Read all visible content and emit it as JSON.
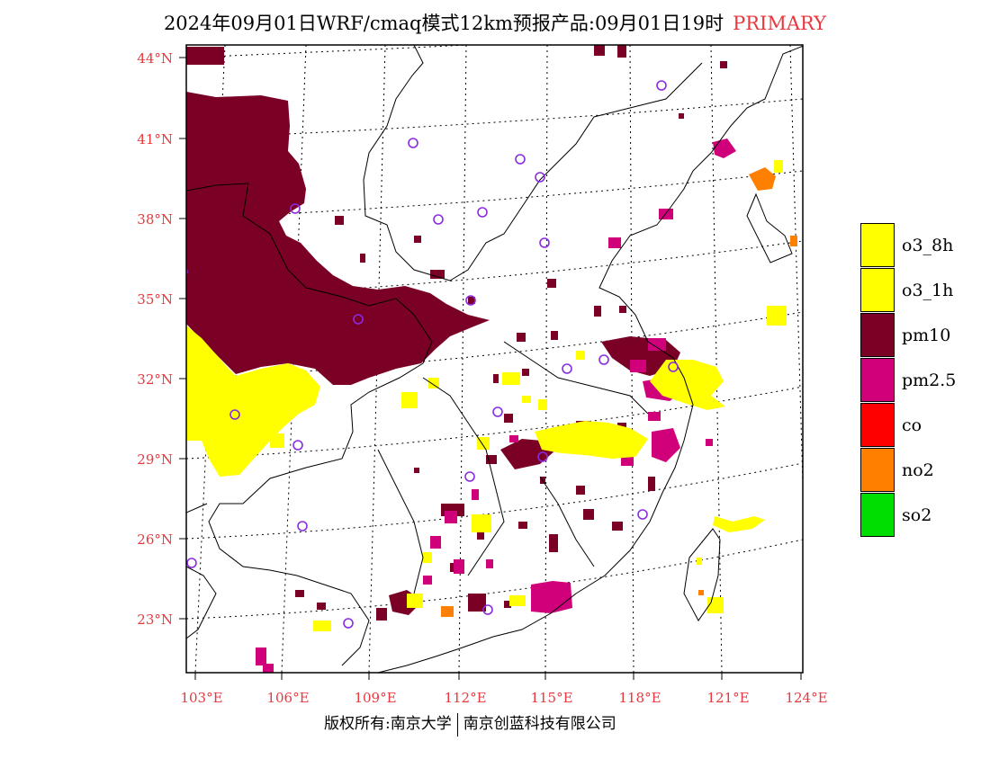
{
  "title": {
    "main": "2024年09月01日WRF/cmaq模式12km预报产品:09月01日19时",
    "tag": "PRIMARY"
  },
  "axes": {
    "lat_labels": [
      "44°N",
      "41°N",
      "38°N",
      "35°N",
      "32°N",
      "29°N",
      "26°N",
      "23°N"
    ],
    "lon_labels": [
      "103°E",
      "106°E",
      "109°E",
      "112°E",
      "115°E",
      "118°E",
      "121°E",
      "124°E"
    ]
  },
  "legend": {
    "items": [
      {
        "label": "o3_8h",
        "color": "#ffff00"
      },
      {
        "label": "o3_1h",
        "color": "#ffff00"
      },
      {
        "label": "pm10",
        "color": "#7a0026"
      },
      {
        "label": "pm2.5",
        "color": "#d0007a"
      },
      {
        "label": "co",
        "color": "#ff0000"
      },
      {
        "label": "no2",
        "color": "#ff7f00"
      },
      {
        "label": "so2",
        "color": "#00dd00"
      }
    ]
  },
  "footer": {
    "left": "版权所有:南京大学",
    "right": "南京创蓝科技有限公司"
  },
  "colors": {
    "pm10": "#7a0026",
    "pm25": "#d0007a",
    "o3": "#ffff00",
    "no2": "#ff7f00",
    "station": "#8a2be2",
    "axis_text": "#e8383d"
  }
}
